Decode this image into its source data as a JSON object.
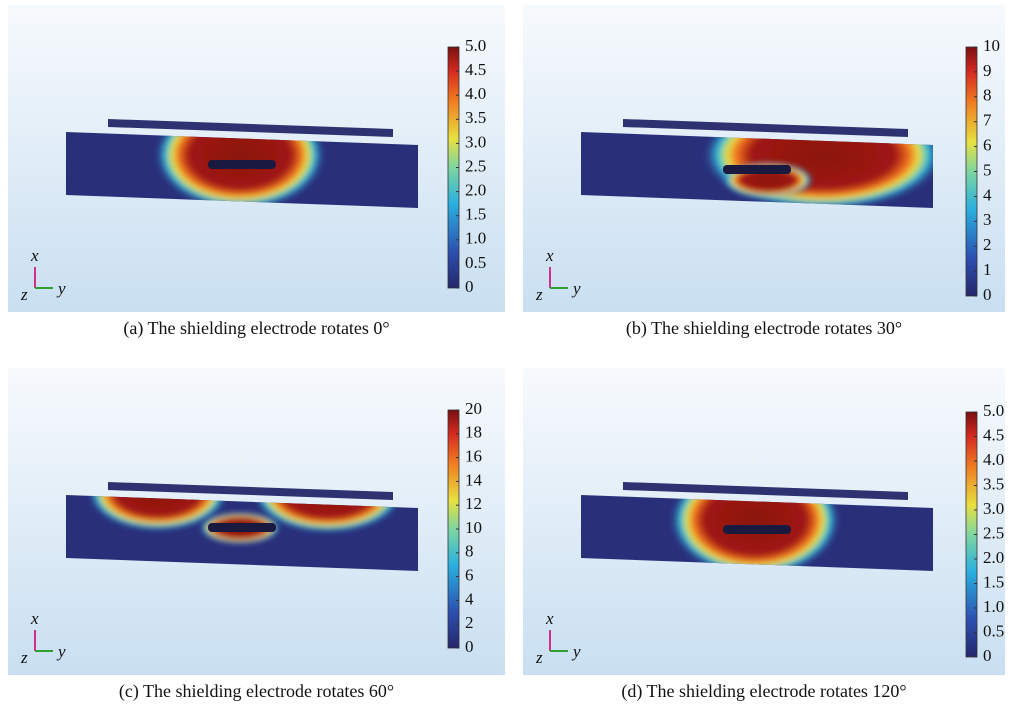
{
  "panels": [
    {
      "caption": "(a) The shielding electrode rotates 0°",
      "axes": {
        "x": "x",
        "y": "y",
        "z": "z"
      },
      "colorbar": {
        "ticks": [
          {
            "value": 0,
            "label": "0"
          },
          {
            "value": 0.5,
            "label": "0.5"
          },
          {
            "value": 1,
            "label": "1.0"
          },
          {
            "value": 1.5,
            "label": "1.5"
          },
          {
            "value": 2,
            "label": "2.0"
          },
          {
            "value": 2.5,
            "label": "2.5"
          },
          {
            "value": 3,
            "label": "3.0"
          },
          {
            "value": 3.5,
            "label": "3.5"
          },
          {
            "value": 4,
            "label": "4.0"
          },
          {
            "value": 4.5,
            "label": "4.5"
          },
          {
            "value": 5,
            "label": "5.0"
          }
        ]
      }
    },
    {
      "caption": "(b) The shielding electrode rotates 30°",
      "axes": {
        "x": "x",
        "y": "y",
        "z": "z"
      },
      "colorbar": {
        "ticks": [
          0,
          1,
          2,
          3,
          4,
          5,
          6,
          7,
          8,
          9,
          10
        ]
      }
    },
    {
      "caption": "(c) The shielding electrode rotates 60°",
      "axes": {
        "x": "x",
        "y": "y",
        "z": "z"
      },
      "colorbar": {
        "ticks": [
          0,
          2,
          4,
          6,
          8,
          10,
          12,
          14,
          16,
          18,
          20
        ]
      }
    },
    {
      "caption": "(d) The shielding electrode rotates 120°",
      "axes": {
        "x": "x",
        "y": "y",
        "z": "z"
      },
      "colorbar": {
        "ticks": [
          {
            "value": 0,
            "label": "0"
          },
          {
            "value": 0.5,
            "label": "0.5"
          },
          {
            "value": 1,
            "label": "1.0"
          },
          {
            "value": 1.5,
            "label": "1.5"
          },
          {
            "value": 2,
            "label": "2.0"
          },
          {
            "value": 2.5,
            "label": "2.5"
          },
          {
            "value": 3,
            "label": "3.0"
          },
          {
            "value": 3.5,
            "label": "3.5"
          },
          {
            "value": 4,
            "label": "4.0"
          },
          {
            "value": 4.5,
            "label": "4.5"
          },
          {
            "value": 5,
            "label": "5.0"
          }
        ]
      }
    }
  ]
}
